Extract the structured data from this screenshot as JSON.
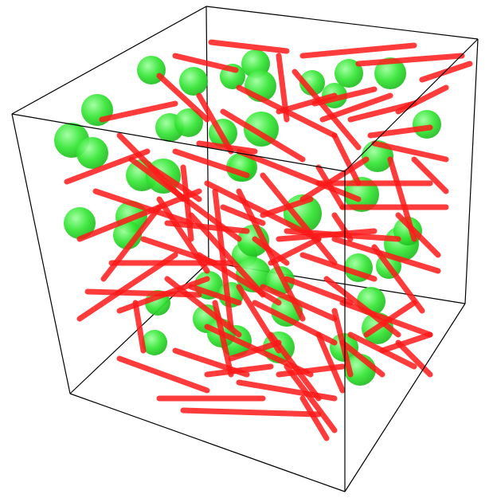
{
  "scene": {
    "description_visible_text": "",
    "colors": {
      "background": "#ffffff",
      "box_edge": "#000000",
      "rod": "#ff1a1a",
      "sphere": "#2ee82e",
      "sphere_highlight": "#8cff8c"
    },
    "object_kinds": [
      "box-wireframe",
      "rod",
      "sphere"
    ]
  }
}
